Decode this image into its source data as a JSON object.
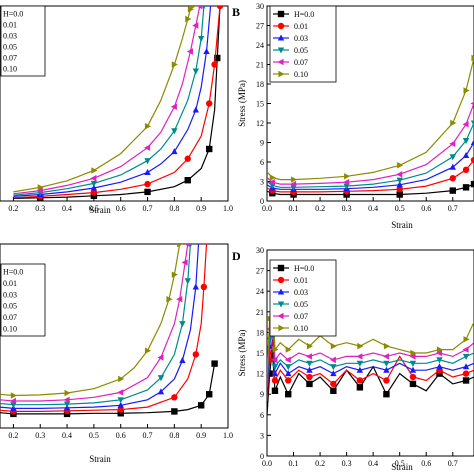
{
  "chart_data": [
    {
      "panel": "A",
      "panel_label": "",
      "type": "line",
      "xlabel": "Strain",
      "ylabel": "",
      "xlim": [
        0.15,
        1.0
      ],
      "ylim": [
        0,
        30
      ],
      "xticks": [
        "0.2",
        "0.3",
        "0.4",
        "0.5",
        "0.6",
        "0.7",
        "0.8",
        "0.9",
        "1.0"
      ],
      "yticks": [],
      "legend": "top-left",
      "series": [
        {
          "name": "H=0.0",
          "color": "#000000",
          "marker": "square",
          "x": [
            0.2,
            0.3,
            0.4,
            0.5,
            0.6,
            0.7,
            0.8,
            0.85,
            0.9,
            0.93,
            0.95,
            0.96,
            0.97
          ],
          "y": [
            0.4,
            0.5,
            0.6,
            0.8,
            1.0,
            1.4,
            2.2,
            3.2,
            5.0,
            8.0,
            14.0,
            22.0,
            30.0
          ]
        },
        {
          "name": "0.01",
          "color": "#ff0000",
          "marker": "circle",
          "x": [
            0.2,
            0.3,
            0.4,
            0.5,
            0.6,
            0.7,
            0.8,
            0.85,
            0.9,
            0.93,
            0.95,
            0.97
          ],
          "y": [
            0.5,
            0.7,
            1.0,
            1.3,
            1.8,
            2.6,
            4.4,
            6.5,
            10.0,
            15.0,
            21.0,
            30.0
          ]
        },
        {
          "name": "0.03",
          "color": "#1a1aff",
          "marker": "triangle-up",
          "x": [
            0.2,
            0.3,
            0.4,
            0.5,
            0.6,
            0.7,
            0.75,
            0.8,
            0.85,
            0.88,
            0.9,
            0.92,
            0.935
          ],
          "y": [
            0.7,
            1.0,
            1.4,
            2.0,
            2.9,
            4.4,
            5.7,
            7.6,
            11.0,
            14.0,
            17.5,
            23.0,
            30.0
          ]
        },
        {
          "name": "0.05",
          "color": "#008b8b",
          "marker": "triangle-down",
          "x": [
            0.2,
            0.3,
            0.4,
            0.5,
            0.6,
            0.7,
            0.75,
            0.8,
            0.85,
            0.88,
            0.9,
            0.91
          ],
          "y": [
            0.9,
            1.3,
            1.9,
            2.7,
            4.0,
            6.2,
            8.0,
            10.8,
            15.5,
            20.0,
            25.0,
            30.0
          ]
        },
        {
          "name": "0.07",
          "color": "#e020c0",
          "marker": "triangle-left",
          "x": [
            0.2,
            0.3,
            0.4,
            0.5,
            0.6,
            0.7,
            0.75,
            0.8,
            0.83,
            0.86,
            0.88,
            0.895
          ],
          "y": [
            1.1,
            1.6,
            2.4,
            3.5,
            5.3,
            8.2,
            10.6,
            14.5,
            18.0,
            23.0,
            27.0,
            30.0
          ]
        },
        {
          "name": "0.10",
          "color": "#8b8b00",
          "marker": "triangle-right",
          "x": [
            0.2,
            0.3,
            0.4,
            0.5,
            0.6,
            0.7,
            0.75,
            0.8,
            0.83,
            0.85,
            0.86,
            0.87
          ],
          "y": [
            1.4,
            2.1,
            3.1,
            4.7,
            7.3,
            11.5,
            15.5,
            21.0,
            25.0,
            28.0,
            29.5,
            30.0
          ]
        }
      ]
    },
    {
      "panel": "B",
      "panel_label": "B",
      "type": "line",
      "xlabel": "Strain",
      "ylabel": "Stress (MPa)",
      "xlim": [
        0.0,
        0.78
      ],
      "ylim": [
        0,
        30
      ],
      "xticks": [
        "0.0",
        "0.1",
        "0.2",
        "0.3",
        "0.4",
        "0.5",
        "0.6",
        "0.7"
      ],
      "yticks": [
        "0",
        "3",
        "6",
        "9",
        "12",
        "15",
        "18",
        "21",
        "24",
        "27",
        "30"
      ],
      "legend": "top-left",
      "series": [
        {
          "name": "H=0.0",
          "color": "#000000",
          "marker": "square",
          "x": [
            0.0,
            0.02,
            0.05,
            0.1,
            0.2,
            0.3,
            0.4,
            0.5,
            0.6,
            0.7,
            0.75,
            0.78
          ],
          "y": [
            1.5,
            1.2,
            1.0,
            1.0,
            1.0,
            1.0,
            1.0,
            1.0,
            1.2,
            1.6,
            2.1,
            2.6
          ]
        },
        {
          "name": "0.01",
          "color": "#ff0000",
          "marker": "circle",
          "x": [
            0.0,
            0.02,
            0.05,
            0.1,
            0.2,
            0.3,
            0.4,
            0.5,
            0.6,
            0.7,
            0.75,
            0.78
          ],
          "y": [
            2.0,
            1.6,
            1.4,
            1.4,
            1.4,
            1.5,
            1.6,
            1.8,
            2.3,
            3.5,
            4.8,
            6.3
          ]
        },
        {
          "name": "0.03",
          "color": "#1a1aff",
          "marker": "triangle-up",
          "x": [
            0.0,
            0.02,
            0.05,
            0.1,
            0.2,
            0.3,
            0.4,
            0.5,
            0.6,
            0.7,
            0.75,
            0.78
          ],
          "y": [
            2.5,
            2.0,
            1.8,
            1.8,
            1.8,
            1.9,
            2.1,
            2.5,
            3.3,
            5.2,
            7.0,
            9.0
          ]
        },
        {
          "name": "0.05",
          "color": "#008b8b",
          "marker": "triangle-down",
          "x": [
            0.0,
            0.02,
            0.05,
            0.1,
            0.2,
            0.3,
            0.4,
            0.5,
            0.6,
            0.7,
            0.75,
            0.78
          ],
          "y": [
            3.0,
            2.4,
            2.1,
            2.1,
            2.2,
            2.3,
            2.6,
            3.2,
            4.3,
            6.8,
            9.3,
            12.0
          ]
        },
        {
          "name": "0.07",
          "color": "#e020c0",
          "marker": "triangle-left",
          "x": [
            0.0,
            0.02,
            0.05,
            0.1,
            0.2,
            0.3,
            0.4,
            0.5,
            0.6,
            0.7,
            0.75,
            0.78
          ],
          "y": [
            3.6,
            2.9,
            2.6,
            2.6,
            2.7,
            2.9,
            3.3,
            4.1,
            5.6,
            8.8,
            11.8,
            15.0
          ]
        },
        {
          "name": "0.10",
          "color": "#8b8b00",
          "marker": "triangle-right",
          "x": [
            0.0,
            0.02,
            0.05,
            0.1,
            0.2,
            0.3,
            0.4,
            0.5,
            0.6,
            0.7,
            0.75,
            0.78
          ],
          "y": [
            4.5,
            3.6,
            3.3,
            3.3,
            3.5,
            3.8,
            4.4,
            5.5,
            7.5,
            12.0,
            17.0,
            22.0
          ]
        }
      ]
    },
    {
      "panel": "C",
      "panel_label": "",
      "type": "line",
      "xlabel": "Strain",
      "ylabel": "",
      "xlim": [
        0.15,
        1.0
      ],
      "ylim": [
        0,
        30
      ],
      "xticks": [
        "0.2",
        "0.3",
        "0.4",
        "0.5",
        "0.6",
        "0.7",
        "0.8",
        "0.9",
        "1.0"
      ],
      "yticks": [],
      "legend": "top-left",
      "series": [
        {
          "name": "H=0.0",
          "color": "#000000",
          "marker": "square",
          "x": [
            0.15,
            0.2,
            0.3,
            0.4,
            0.5,
            0.6,
            0.7,
            0.8,
            0.85,
            0.9,
            0.93,
            0.95
          ],
          "y": [
            2.5,
            2.3,
            2.3,
            2.3,
            2.4,
            2.4,
            2.5,
            2.7,
            3.0,
            3.7,
            5.5,
            10.5
          ]
        },
        {
          "name": "0.01",
          "color": "#ff0000",
          "marker": "circle",
          "x": [
            0.15,
            0.2,
            0.3,
            0.4,
            0.5,
            0.6,
            0.7,
            0.8,
            0.85,
            0.88,
            0.9,
            0.91,
            0.92
          ],
          "y": [
            2.9,
            2.7,
            2.7,
            2.8,
            2.9,
            3.0,
            3.4,
            5.0,
            8.0,
            12.0,
            17.0,
            23.0,
            30.0
          ]
        },
        {
          "name": "0.03",
          "color": "#1a1aff",
          "marker": "triangle-up",
          "x": [
            0.15,
            0.2,
            0.3,
            0.4,
            0.5,
            0.6,
            0.7,
            0.75,
            0.8,
            0.83,
            0.86,
            0.88,
            0.89
          ],
          "y": [
            3.4,
            3.2,
            3.2,
            3.3,
            3.4,
            3.7,
            4.6,
            5.9,
            8.0,
            11.0,
            16.0,
            23.0,
            30.0
          ]
        },
        {
          "name": "0.05",
          "color": "#008b8b",
          "marker": "triangle-down",
          "x": [
            0.15,
            0.2,
            0.3,
            0.4,
            0.5,
            0.6,
            0.7,
            0.75,
            0.8,
            0.83,
            0.85,
            0.86
          ],
          "y": [
            4.0,
            3.8,
            3.8,
            3.9,
            4.1,
            4.6,
            6.2,
            8.2,
            12.0,
            17.0,
            24.0,
            30.0
          ]
        },
        {
          "name": "0.07",
          "color": "#e020c0",
          "marker": "triangle-left",
          "x": [
            0.15,
            0.2,
            0.3,
            0.4,
            0.5,
            0.6,
            0.7,
            0.75,
            0.8,
            0.82,
            0.84,
            0.85
          ],
          "y": [
            4.6,
            4.4,
            4.4,
            4.6,
            5.0,
            5.8,
            8.2,
            11.5,
            17.0,
            21.0,
            27.0,
            30.0
          ]
        },
        {
          "name": "0.10",
          "color": "#8b8b00",
          "marker": "triangle-right",
          "x": [
            0.15,
            0.2,
            0.3,
            0.4,
            0.5,
            0.6,
            0.65,
            0.7,
            0.75,
            0.78,
            0.8,
            0.82
          ],
          "y": [
            5.5,
            5.3,
            5.4,
            5.7,
            6.4,
            8.0,
            9.8,
            12.6,
            17.0,
            21.0,
            25.0,
            30.0
          ]
        }
      ]
    },
    {
      "panel": "D",
      "panel_label": "D",
      "type": "line",
      "xlabel": "Strain",
      "ylabel": "Stress (MPa)",
      "xlim": [
        0.0,
        0.78
      ],
      "ylim": [
        0,
        30
      ],
      "xticks": [
        "0.0",
        "0.1",
        "0.2",
        "0.3",
        "0.4",
        "0.5",
        "0.6",
        "0.7"
      ],
      "yticks": [
        "0",
        "3",
        "6",
        "9",
        "12",
        "15",
        "18",
        "21",
        "24",
        "27",
        "30"
      ],
      "legend": "top-left",
      "series": [
        {
          "name": "H=0.0",
          "color": "#000000",
          "marker": "square",
          "x": [
            0.0,
            0.01,
            0.02,
            0.03,
            0.05,
            0.08,
            0.12,
            0.16,
            0.2,
            0.25,
            0.3,
            0.35,
            0.4,
            0.45,
            0.5,
            0.55,
            0.6,
            0.65,
            0.7,
            0.75,
            0.78
          ],
          "y": [
            6.0,
            12.0,
            15.5,
            9.5,
            11.5,
            9.0,
            12.0,
            10.5,
            11.5,
            9.5,
            12.5,
            10.0,
            13.0,
            9.0,
            12.0,
            10.5,
            9.5,
            12.0,
            10.5,
            11.0,
            11.5
          ]
        },
        {
          "name": "0.01",
          "color": "#ff0000",
          "marker": "circle",
          "x": [
            0.0,
            0.01,
            0.02,
            0.03,
            0.05,
            0.08,
            0.12,
            0.16,
            0.2,
            0.25,
            0.3,
            0.35,
            0.4,
            0.45,
            0.5,
            0.55,
            0.6,
            0.65,
            0.7,
            0.75,
            0.78
          ],
          "y": [
            8.0,
            14.0,
            17.0,
            11.0,
            12.5,
            11.0,
            12.5,
            11.5,
            12.0,
            10.5,
            12.5,
            11.0,
            12.0,
            11.0,
            14.5,
            11.5,
            11.0,
            12.5,
            11.5,
            12.0,
            12.5
          ]
        },
        {
          "name": "0.03",
          "color": "#1a1aff",
          "marker": "triangle-up",
          "x": [
            0.0,
            0.01,
            0.02,
            0.03,
            0.05,
            0.08,
            0.12,
            0.16,
            0.2,
            0.25,
            0.3,
            0.35,
            0.4,
            0.45,
            0.5,
            0.55,
            0.6,
            0.65,
            0.7,
            0.75,
            0.78
          ],
          "y": [
            9.0,
            16.0,
            19.0,
            12.0,
            13.5,
            12.0,
            13.0,
            12.5,
            13.0,
            12.0,
            13.0,
            12.5,
            13.0,
            12.5,
            13.5,
            12.5,
            12.5,
            13.0,
            12.5,
            13.0,
            13.5
          ]
        },
        {
          "name": "0.05",
          "color": "#008b8b",
          "marker": "triangle-down",
          "x": [
            0.0,
            0.01,
            0.02,
            0.03,
            0.05,
            0.08,
            0.12,
            0.16,
            0.2,
            0.25,
            0.3,
            0.35,
            0.4,
            0.45,
            0.5,
            0.55,
            0.6,
            0.65,
            0.7,
            0.75,
            0.78
          ],
          "y": [
            10.0,
            17.0,
            21.0,
            13.0,
            14.0,
            13.0,
            14.0,
            13.5,
            14.0,
            13.0,
            13.5,
            13.5,
            14.0,
            13.5,
            14.0,
            13.5,
            13.5,
            14.0,
            13.5,
            14.5,
            15.0
          ]
        },
        {
          "name": "0.07",
          "color": "#e020c0",
          "marker": "triangle-left",
          "x": [
            0.0,
            0.01,
            0.02,
            0.03,
            0.05,
            0.08,
            0.12,
            0.16,
            0.2,
            0.25,
            0.3,
            0.35,
            0.4,
            0.45,
            0.5,
            0.55,
            0.6,
            0.65,
            0.7,
            0.75,
            0.78
          ],
          "y": [
            11.0,
            18.5,
            22.0,
            14.0,
            15.0,
            14.0,
            15.0,
            14.5,
            15.0,
            14.0,
            14.5,
            14.5,
            15.0,
            14.5,
            15.0,
            14.5,
            14.5,
            15.0,
            14.5,
            15.5,
            16.5
          ]
        },
        {
          "name": "0.10",
          "color": "#8b8b00",
          "marker": "triangle-right",
          "x": [
            0.0,
            0.01,
            0.02,
            0.03,
            0.05,
            0.08,
            0.12,
            0.16,
            0.2,
            0.25,
            0.3,
            0.35,
            0.4,
            0.45,
            0.5,
            0.55,
            0.6,
            0.65,
            0.7,
            0.75,
            0.78
          ],
          "y": [
            12.0,
            20.0,
            24.0,
            15.5,
            16.5,
            15.5,
            17.0,
            16.0,
            17.5,
            16.0,
            16.5,
            16.0,
            17.0,
            16.0,
            15.5,
            15.0,
            15.0,
            15.5,
            15.5,
            17.0,
            19.5
          ]
        }
      ]
    }
  ]
}
